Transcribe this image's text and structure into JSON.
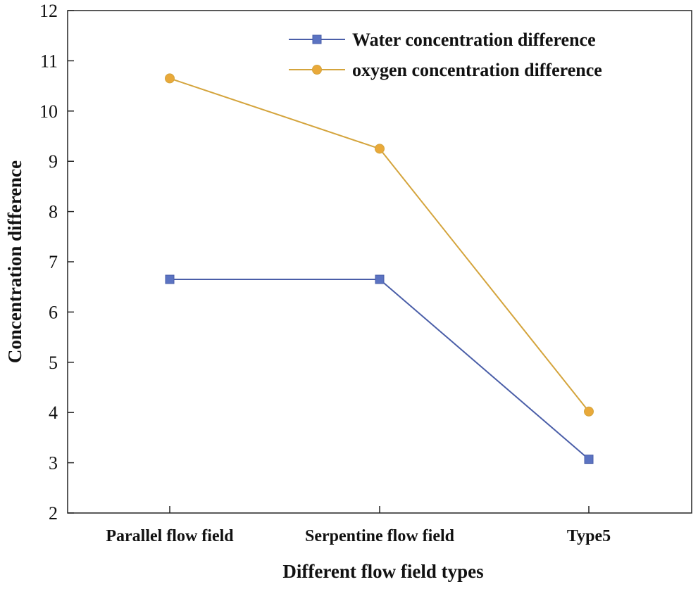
{
  "chart_data": {
    "type": "line",
    "title": "",
    "xlabel": "Different flow field types",
    "ylabel": "Concentration difference",
    "categories": [
      "Parallel flow field",
      "Serpentine flow field",
      "Type5"
    ],
    "ylim": [
      2,
      12
    ],
    "yticks": [
      2,
      3,
      4,
      5,
      6,
      7,
      8,
      9,
      10,
      11,
      12
    ],
    "grid": false,
    "legend_position": "top-right",
    "series": [
      {
        "name": "Water concentration difference",
        "values": [
          6.65,
          6.65,
          3.07
        ],
        "color": "#4a5ea8",
        "marker_fill": "#5b73c2",
        "marker": "square"
      },
      {
        "name": "oxygen concentration difference",
        "values": [
          10.65,
          9.25,
          4.02
        ],
        "color": "#d4a43c",
        "marker_fill": "#e9a93a",
        "marker": "circle"
      }
    ]
  }
}
